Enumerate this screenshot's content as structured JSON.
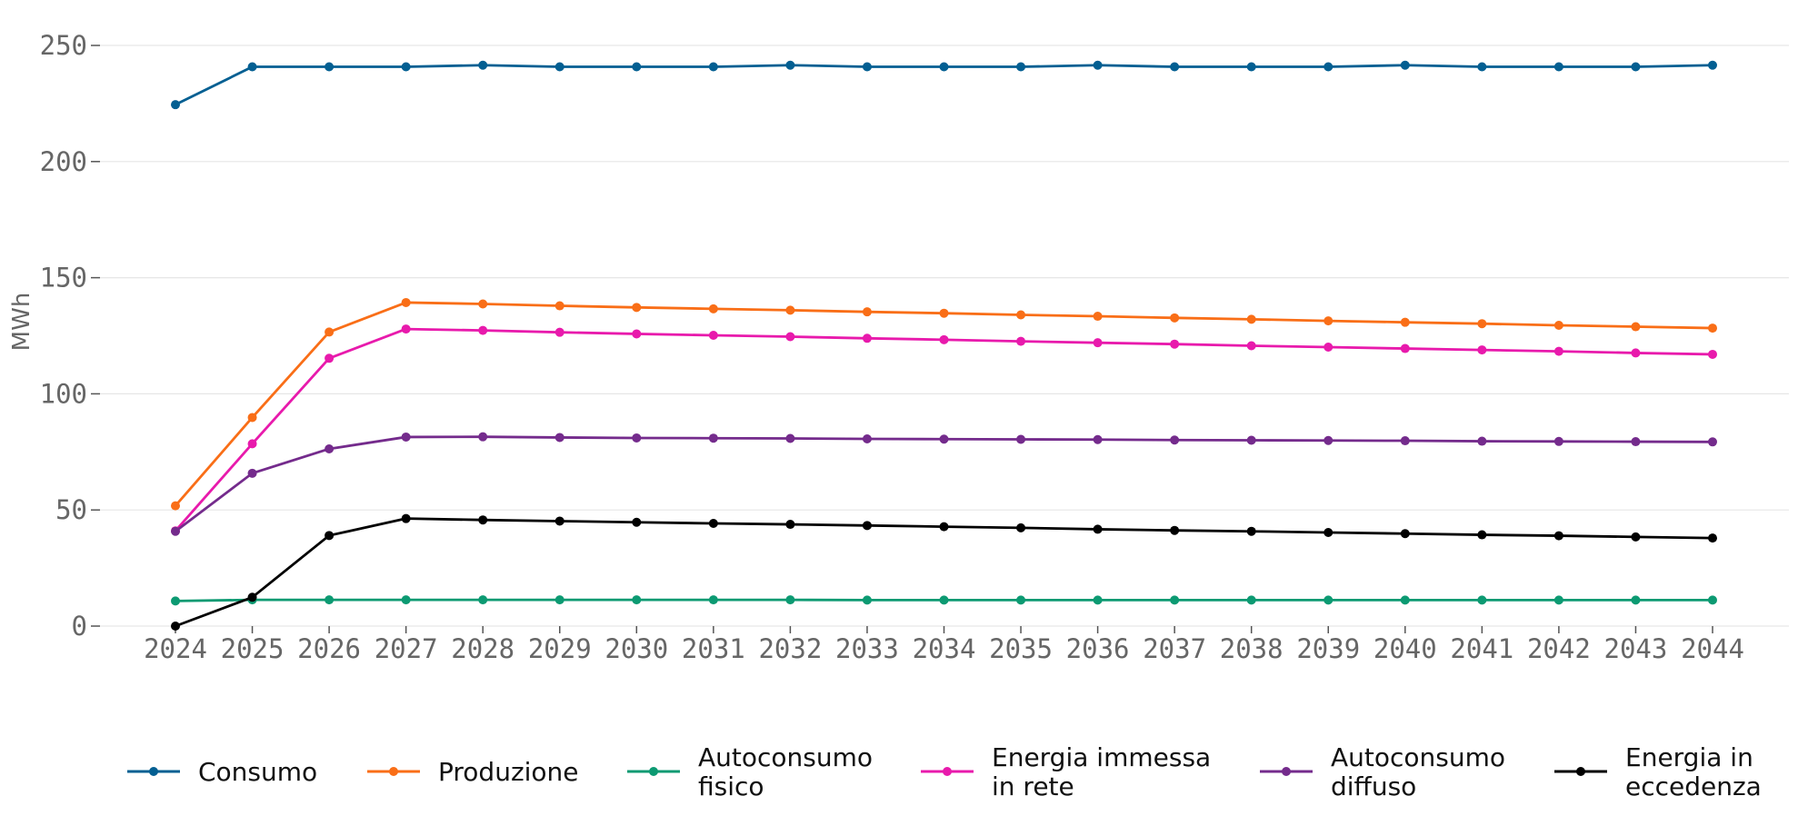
{
  "chart_data": {
    "type": "line",
    "title": "",
    "xlabel": "",
    "ylabel": "MWh",
    "ylim": [
      0,
      260
    ],
    "yticks": [
      0,
      50,
      100,
      150,
      200,
      250
    ],
    "grid": "horizontal",
    "legend_position": "bottom",
    "categories": [
      "2024",
      "2025",
      "2026",
      "2027",
      "2028",
      "2029",
      "2030",
      "2031",
      "2032",
      "2033",
      "2034",
      "2035",
      "2036",
      "2037",
      "2038",
      "2039",
      "2040",
      "2041",
      "2042",
      "2043",
      "2044"
    ],
    "series": [
      {
        "name": "Consumo",
        "color": "#035f92",
        "values": [
          224.5,
          240.8,
          240.8,
          240.8,
          241.5,
          240.8,
          240.8,
          240.8,
          241.5,
          240.8,
          240.8,
          240.8,
          241.5,
          240.8,
          240.8,
          240.8,
          241.5,
          240.8,
          240.8,
          240.8,
          241.5
        ]
      },
      {
        "name": "Produzione",
        "color": "#f96e17",
        "values": [
          51.8,
          89.8,
          126.6,
          139.3,
          138.7,
          137.9,
          137.2,
          136.6,
          136.0,
          135.3,
          134.7,
          134.0,
          133.4,
          132.7,
          132.1,
          131.4,
          130.8,
          130.2,
          129.5,
          128.9,
          128.3
        ]
      },
      {
        "name": "Autoconsumo fisico",
        "color": "#0c9a72",
        "values": [
          10.8,
          11.3,
          11.3,
          11.3,
          11.3,
          11.3,
          11.3,
          11.3,
          11.3,
          11.2,
          11.2,
          11.2,
          11.2,
          11.2,
          11.2,
          11.2,
          11.2,
          11.2,
          11.2,
          11.2,
          11.2
        ]
      },
      {
        "name": "Energia immessa in rete",
        "color": "#e81aac",
        "values": [
          41.0,
          78.5,
          115.3,
          127.9,
          127.3,
          126.5,
          125.8,
          125.2,
          124.6,
          123.9,
          123.3,
          122.6,
          122.0,
          121.4,
          120.7,
          120.1,
          119.5,
          118.9,
          118.3,
          117.6,
          117.0
        ]
      },
      {
        "name": "Autoconsumo diffuso",
        "color": "#742b8c",
        "values": [
          40.8,
          65.8,
          76.3,
          81.4,
          81.5,
          81.2,
          81.0,
          80.9,
          80.8,
          80.6,
          80.5,
          80.4,
          80.3,
          80.1,
          80.0,
          79.9,
          79.8,
          79.6,
          79.5,
          79.4,
          79.3
        ]
      },
      {
        "name": "Energia in eccedenza",
        "color": "#000000",
        "values": [
          0.0,
          12.4,
          39.0,
          46.3,
          45.7,
          45.2,
          44.7,
          44.2,
          43.8,
          43.3,
          42.8,
          42.3,
          41.7,
          41.2,
          40.8,
          40.3,
          39.8,
          39.3,
          38.9,
          38.4,
          37.9
        ]
      }
    ],
    "legend": {
      "entries": [
        {
          "lines": [
            "Consumo"
          ],
          "color": "#035f92"
        },
        {
          "lines": [
            "Produzione"
          ],
          "color": "#f96e17"
        },
        {
          "lines": [
            "Autoconsumo",
            "fisico"
          ],
          "color": "#0c9a72"
        },
        {
          "lines": [
            "Energia immessa",
            "in rete"
          ],
          "color": "#e81aac"
        },
        {
          "lines": [
            "Autoconsumo",
            "diffuso"
          ],
          "color": "#742b8c"
        },
        {
          "lines": [
            "Energia in",
            "eccedenza"
          ],
          "color": "#000000"
        }
      ]
    }
  }
}
